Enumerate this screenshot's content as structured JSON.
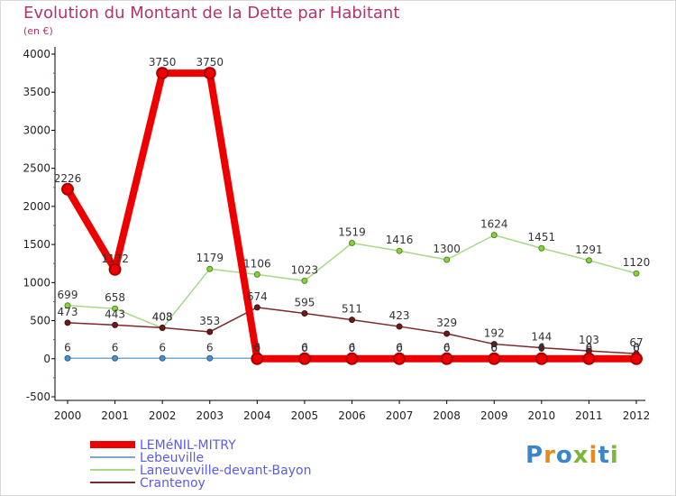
{
  "header": {
    "title": "Evolution du Montant de la Dette par Habitant",
    "subtitle": "(en €)"
  },
  "logo": {
    "text": "Proxiti",
    "letters": [
      "P",
      "r",
      "o",
      "x",
      "i",
      "t",
      "i"
    ],
    "colors": [
      "#3a86c8",
      "#e98a1e",
      "#3a86c8",
      "#7bb83a",
      "#e98a1e",
      "#3a86c8",
      "#7bb83a"
    ]
  },
  "colors": {
    "axis": "#000000",
    "grid": "#e4e4e4",
    "legend_text": "#5b5be6",
    "tick_text": "#222222",
    "label_text": "#333333"
  },
  "chart_data": {
    "type": "line",
    "title": "Evolution du Montant de la Dette par Habitant",
    "subtitle": "(en €)",
    "xlabel": "",
    "ylabel": "",
    "x": [
      "2000",
      "2001",
      "2002",
      "2003",
      "2004",
      "2005",
      "2006",
      "2007",
      "2008",
      "2009",
      "2010",
      "2011",
      "2012"
    ],
    "ylim": [
      -500,
      4000
    ],
    "yticks": [
      -500,
      0,
      500,
      1000,
      1500,
      2000,
      2500,
      3000,
      3500,
      4000
    ],
    "grid": false,
    "legend_position": "bottom-left",
    "series": [
      {
        "name": "LEMéNIL-MITRY",
        "color": "#ee0000",
        "marker_fill": "#ee0000",
        "marker_stroke": "#aa0000",
        "values": [
          2226,
          1172,
          3750,
          3750,
          0,
          0,
          0,
          0,
          0,
          0,
          0,
          0,
          0
        ],
        "labels": [
          "2226",
          "1172",
          "3750",
          "3750",
          "0",
          "0",
          "0",
          "0",
          "0",
          "0",
          "0",
          "0",
          "0"
        ]
      },
      {
        "name": "Lebeuville",
        "color": "#7aa8cf",
        "marker_fill": "#4a90d0",
        "marker_stroke": "#2a5f8f",
        "values": [
          6,
          6,
          6,
          6,
          6,
          6,
          6,
          6,
          6,
          6,
          6,
          6,
          6
        ],
        "labels": [
          "6",
          "6",
          "6",
          "6",
          "6",
          "6",
          "6",
          "6",
          "6",
          "6",
          "6",
          "6",
          "6"
        ]
      },
      {
        "name": "Laneuveville-devant-Bayon",
        "color": "#a8d88a",
        "marker_fill": "#8ad040",
        "marker_stroke": "#4f8a1f",
        "values": [
          699,
          658,
          403,
          1179,
          1106,
          1023,
          1519,
          1416,
          1300,
          1624,
          1451,
          1291,
          1120
        ],
        "labels": [
          "699",
          "658",
          "403",
          "1179",
          "1106",
          "1023",
          "1519",
          "1416",
          "1300",
          "1624",
          "1451",
          "1291",
          "1120"
        ]
      },
      {
        "name": "Crantenoy",
        "color": "#7a2a2a",
        "marker_fill": "#6b1a1a",
        "marker_stroke": "#4a0f0f",
        "values": [
          473,
          443,
          408,
          353,
          674,
          595,
          511,
          423,
          329,
          192,
          144,
          103,
          67
        ],
        "labels": [
          "473",
          "443",
          "408",
          "353",
          "674",
          "595",
          "511",
          "423",
          "329",
          "192",
          "144",
          "103",
          "67"
        ]
      }
    ]
  }
}
